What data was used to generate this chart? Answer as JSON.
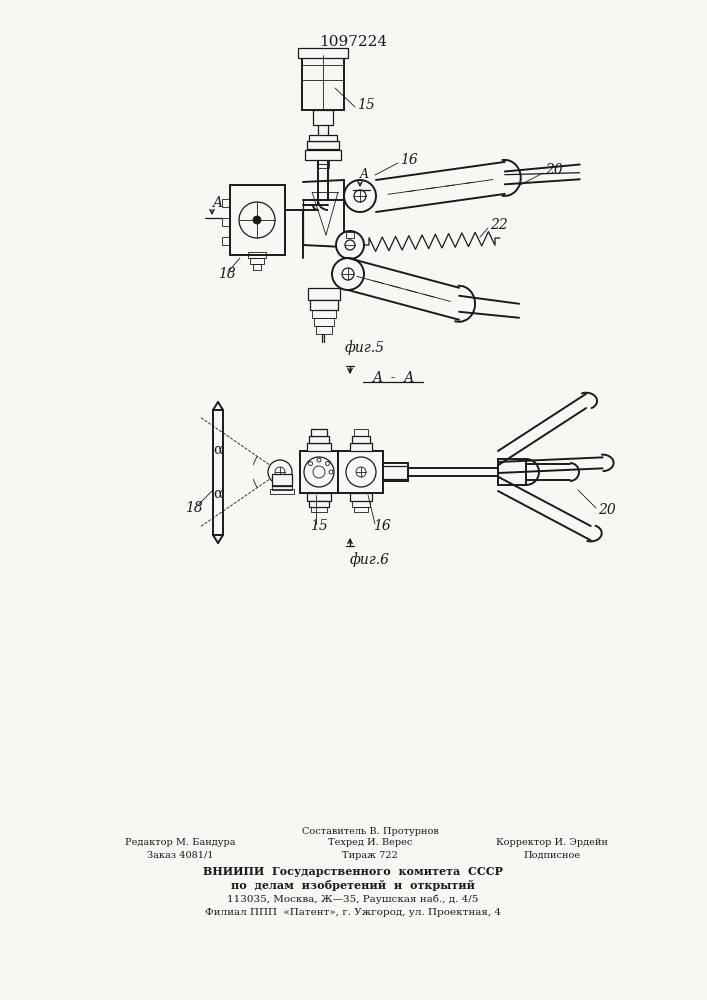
{
  "patent_number": "1097224",
  "fig5_label": "фиг.5",
  "fig6_label": "фиг.6",
  "section_label": "A - A",
  "bg_color": "#f5f5f0",
  "line_color": "#1a1a1a",
  "footer_line1_left": "Редактор М. Бандура",
  "footer_line2_left": "Заказ 4081/1",
  "footer_line1_center": "Составитель В. Протурнов",
  "footer_line2_center": "Техред И. Верес",
  "footer_line3_center": "Тираж 722",
  "footer_line1_right": "Корректор И. Эрдейн",
  "footer_line2_right": "Подписное",
  "footer_bold1": "ВНИИПИ  Государственного  комитета  СССР",
  "footer_bold2": "по  делам  изобретений  и  открытий",
  "footer_addr1": "113035, Москва, Ж—35, Раушская наб., д. 4/5",
  "footer_addr2": "Филиал ППП  «Патент», г. Ужгород, ул. Проектная, 4"
}
